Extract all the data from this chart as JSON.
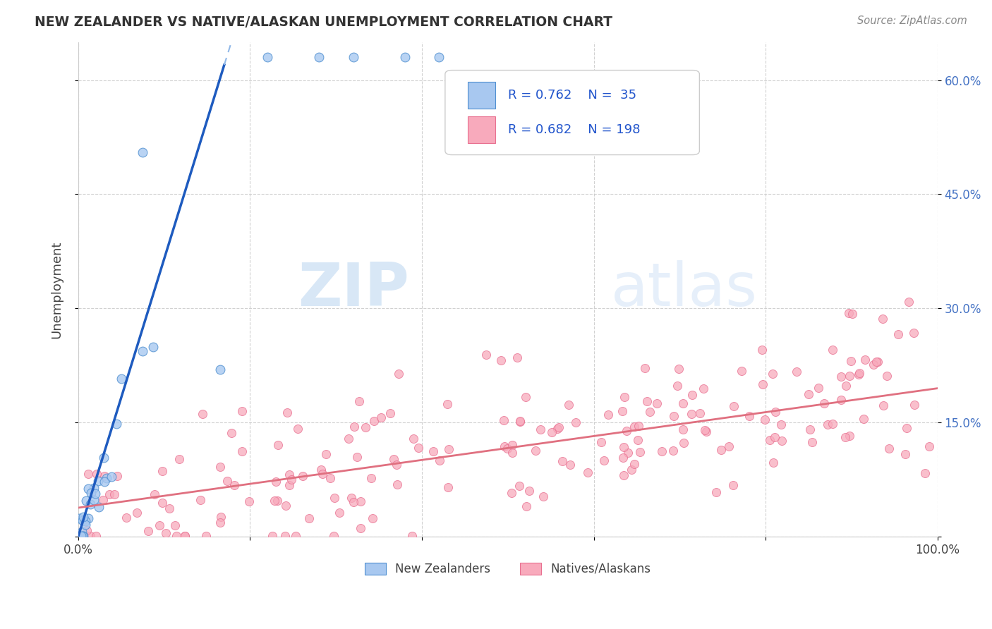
{
  "title": "NEW ZEALANDER VS NATIVE/ALASKAN UNEMPLOYMENT CORRELATION CHART",
  "source": "Source: ZipAtlas.com",
  "ylabel": "Unemployment",
  "xlim": [
    0,
    1.0
  ],
  "ylim": [
    0,
    0.65
  ],
  "color_blue_fill": "#A8C8F0",
  "color_blue_edge": "#5090D0",
  "color_blue_line": "#1E5BBF",
  "color_blue_dash": "#90B8E8",
  "color_pink_fill": "#F8AABC",
  "color_pink_edge": "#E87090",
  "color_pink_line": "#E07080",
  "color_grid": "#cccccc",
  "color_ytick": "#4472c4",
  "color_title": "#333333",
  "color_source": "#888888",
  "color_watermark_zip": "#c0d8f0",
  "color_watermark_atlas": "#c0d8f0",
  "watermark_zip": "ZIP",
  "watermark_atlas": "atlas",
  "legend_r1": "R = 0.762",
  "legend_n1": "N =  35",
  "legend_r2": "R = 0.682",
  "legend_n2": "N = 198",
  "blue_line_solid": [
    [
      0.0,
      0.0
    ],
    [
      0.17,
      0.62
    ]
  ],
  "blue_line_dashed": [
    [
      0.17,
      0.62
    ],
    [
      0.27,
      0.98
    ]
  ],
  "pink_line": [
    [
      0.0,
      0.038
    ],
    [
      1.0,
      0.195
    ]
  ],
  "seed": 42
}
